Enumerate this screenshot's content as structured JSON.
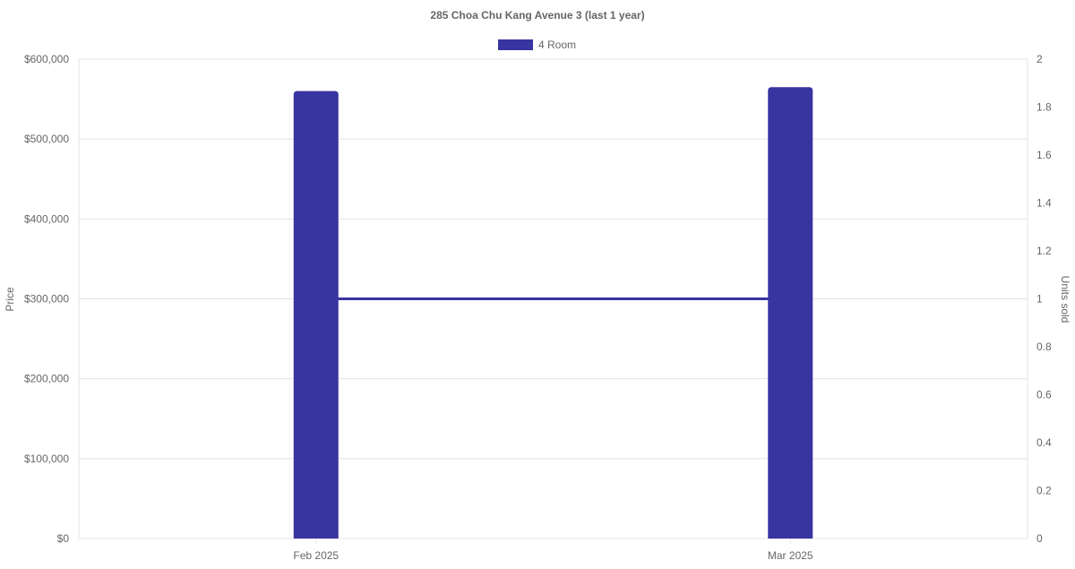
{
  "chart_data": {
    "type": "bar",
    "title": "285 Choa Chu Kang Avenue 3 (last 1 year)",
    "categories": [
      "Feb 2025",
      "Mar 2025"
    ],
    "series": [
      {
        "name": "4 Room",
        "type": "bar",
        "axis": "left",
        "values": [
          560000,
          565000
        ],
        "color": "#3834a0"
      },
      {
        "name": "",
        "type": "line",
        "axis": "right",
        "values": [
          1,
          1
        ],
        "color": "#3834a0"
      }
    ],
    "ylabel": "Price",
    "y2label": "Units sold",
    "ylim": [
      0,
      600000
    ],
    "y2lim": [
      0,
      2
    ],
    "yticks": [
      "$0",
      "$100,000",
      "$200,000",
      "$300,000",
      "$400,000",
      "$500,000",
      "$600,000"
    ],
    "y2ticks": [
      "0",
      "0.2",
      "0.4",
      "0.6",
      "0.8",
      "1",
      "1.2",
      "1.4",
      "1.6",
      "1.8",
      "2"
    ],
    "grid": true,
    "legend": "top"
  }
}
